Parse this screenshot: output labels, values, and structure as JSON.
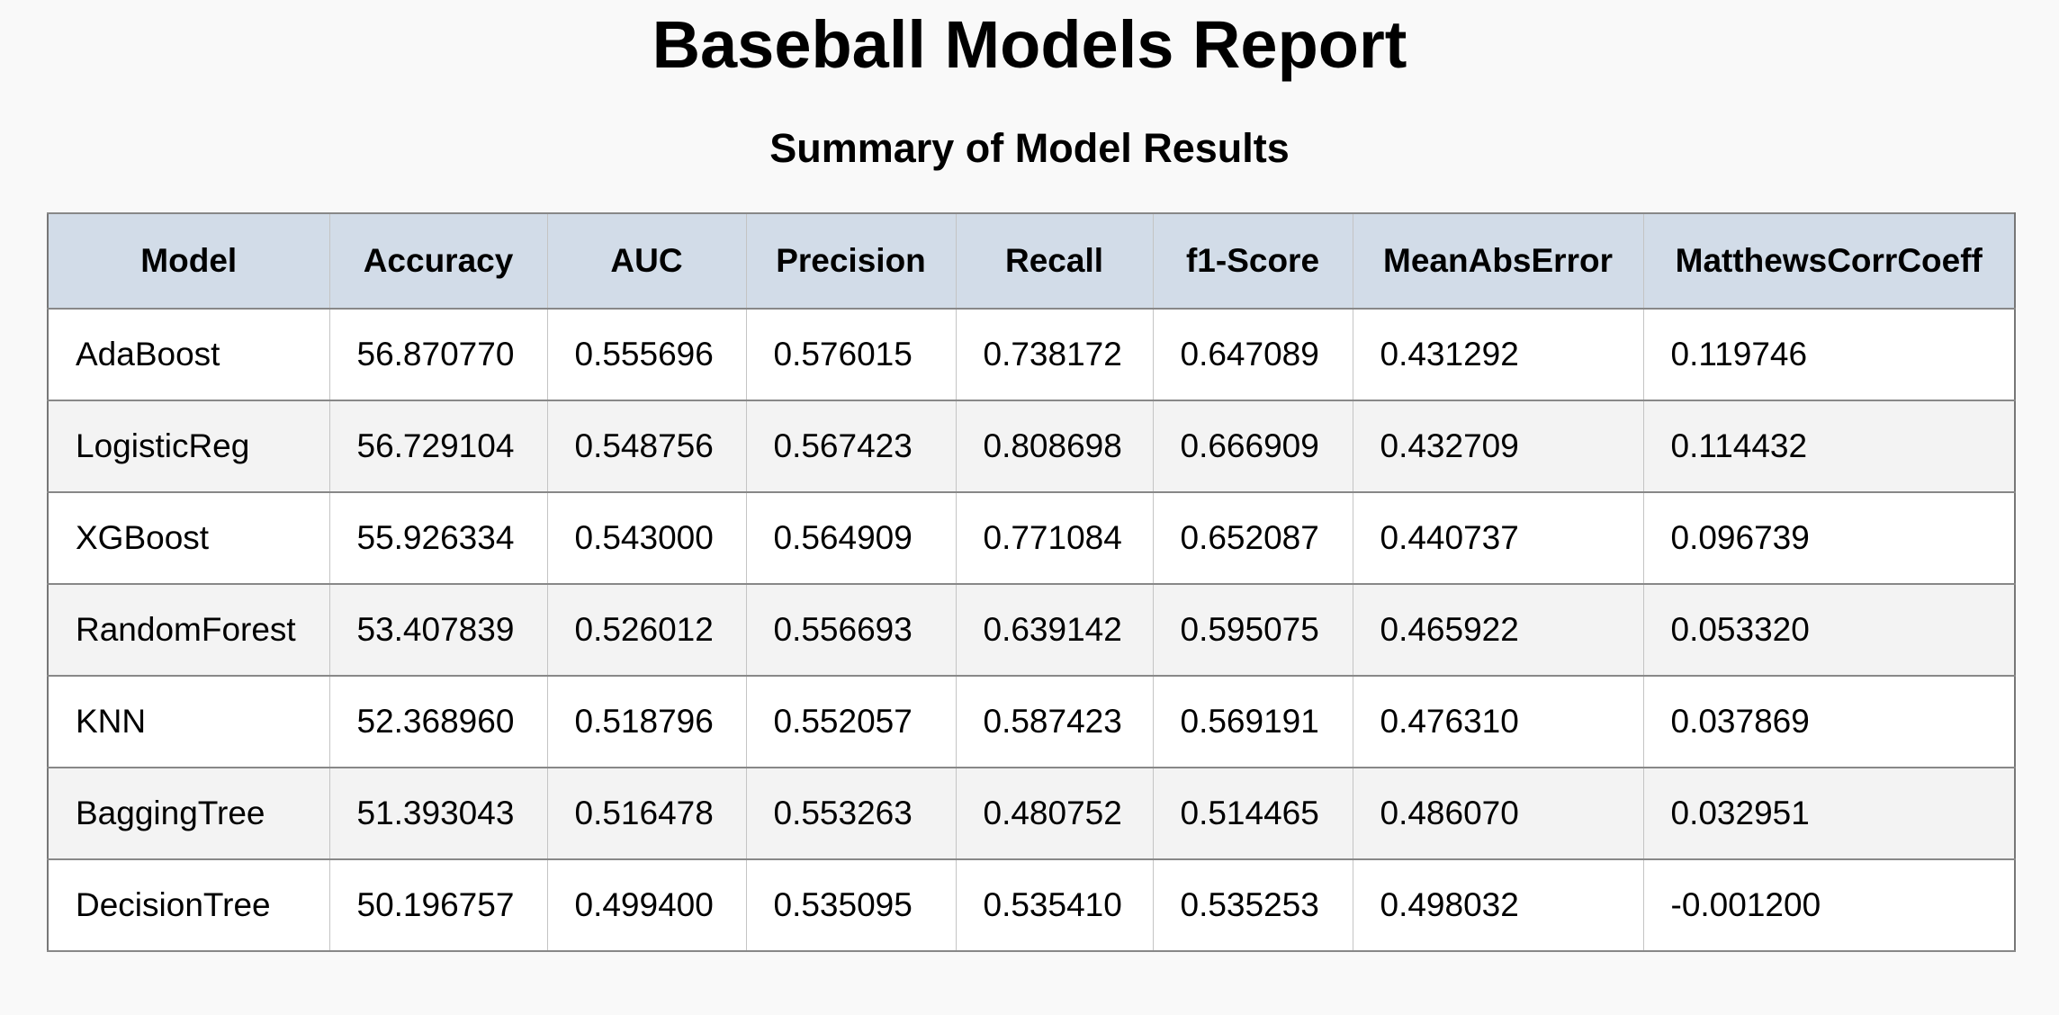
{
  "header": {
    "title": "Baseball Models Report",
    "subtitle": "Summary of Model Results"
  },
  "table": {
    "columns": [
      "Model",
      "Accuracy",
      "AUC",
      "Precision",
      "Recall",
      "f1-Score",
      "MeanAbsError",
      "MatthewsCorrCoeff"
    ],
    "rows": [
      [
        "AdaBoost",
        "56.870770",
        "0.555696",
        "0.576015",
        "0.738172",
        "0.647089",
        "0.431292",
        "0.119746"
      ],
      [
        "LogisticReg",
        "56.729104",
        "0.548756",
        "0.567423",
        "0.808698",
        "0.666909",
        "0.432709",
        "0.114432"
      ],
      [
        "XGBoost",
        "55.926334",
        "0.543000",
        "0.564909",
        "0.771084",
        "0.652087",
        "0.440737",
        "0.096739"
      ],
      [
        "RandomForest",
        "53.407839",
        "0.526012",
        "0.556693",
        "0.639142",
        "0.595075",
        "0.465922",
        "0.053320"
      ],
      [
        "KNN",
        "52.368960",
        "0.518796",
        "0.552057",
        "0.587423",
        "0.569191",
        "0.476310",
        "0.037869"
      ],
      [
        "BaggingTree",
        "51.393043",
        "0.516478",
        "0.553263",
        "0.480752",
        "0.514465",
        "0.486070",
        "0.032951"
      ],
      [
        "DecisionTree",
        "50.196757",
        "0.499400",
        "0.535095",
        "0.535410",
        "0.535253",
        "0.498032",
        "-0.001200"
      ]
    ]
  },
  "colors": {
    "header_background": "#d2dce8",
    "row_odd": "#ffffff",
    "row_even": "#f3f3f3",
    "page_background": "#f9f9f9"
  }
}
